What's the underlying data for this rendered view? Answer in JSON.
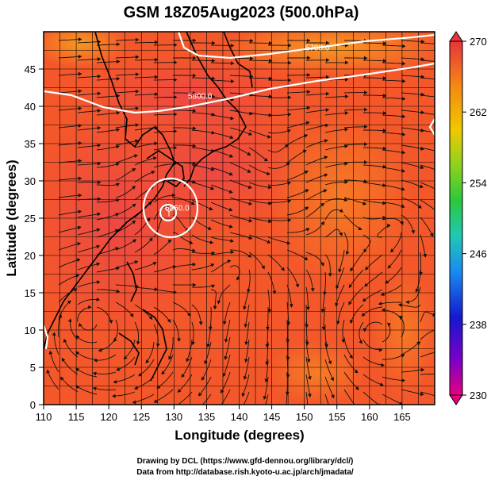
{
  "title": "GSM 18Z05Aug2023 (500.0hPa)",
  "axes": {
    "xlabel": "Longitude (degrees)",
    "ylabel": "Latitude  (degrees)",
    "xlim": [
      110,
      170
    ],
    "ylim": [
      0,
      50
    ],
    "xticks": [
      "110",
      "115",
      "120",
      "125",
      "130",
      "135",
      "140",
      "145",
      "150",
      "155",
      "160",
      "165"
    ],
    "yticks": [
      "0",
      "5",
      "10",
      "15",
      "20",
      "25",
      "30",
      "35",
      "40",
      "45"
    ]
  },
  "colorbar": {
    "ticks": [
      "230",
      "238",
      "246",
      "254",
      "262",
      "270"
    ],
    "range": [
      230,
      270
    ]
  },
  "contours": [
    {
      "label": "5700.0",
      "lon": 152,
      "lat": 47.5
    },
    {
      "label": "5800.0",
      "lon": 134,
      "lat": 41
    },
    {
      "label": "5860.0",
      "lon": 130.5,
      "lat": 26
    }
  ],
  "credits": {
    "line1": "Drawing by DCL (https://www.gfd-dennou.org/library/dcl/)",
    "line2": "Data from http://database.rish.kyoto-u.ac.jp/arch/jmadata/"
  },
  "colors": {
    "field_main": "#f45a2c",
    "field_high": "#ef4a4a",
    "field_low": "#f7a020",
    "contour": "#ffffff",
    "streamline": "#111111"
  }
}
